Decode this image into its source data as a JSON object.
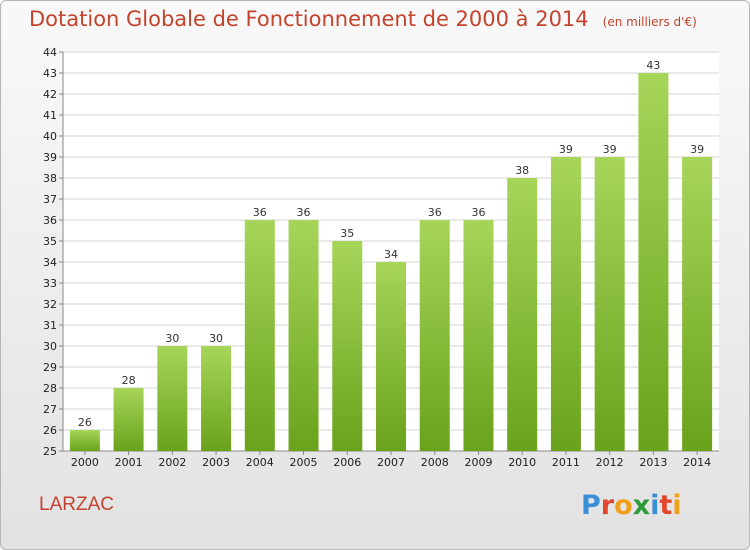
{
  "header": {
    "title": "Dotation Globale de Fonctionnement de 2000 à 2014",
    "subtitle": "(en milliers d'€)"
  },
  "footer": {
    "commune": "LARZAC",
    "logo_letters": [
      "P",
      "r",
      "o",
      "x",
      "i",
      "t",
      "i"
    ],
    "logo_colors": [
      "#3b8fd6",
      "#e2462d",
      "#f0a019",
      "#2e9a3c",
      "#3b8fd6",
      "#e2462d",
      "#f0a019"
    ]
  },
  "colors": {
    "bar_top": "#a6d55a",
    "bar_bottom": "#6aa21c",
    "grid": "#d6d6d6"
  },
  "chart_data": {
    "type": "bar",
    "title": "Dotation Globale de Fonctionnement de 2000 à 2014",
    "subtitle": "(en milliers d'€)",
    "categories": [
      "2000",
      "2001",
      "2002",
      "2003",
      "2004",
      "2005",
      "2006",
      "2007",
      "2008",
      "2009",
      "2010",
      "2011",
      "2012",
      "2013",
      "2014"
    ],
    "values": [
      26,
      28,
      30,
      30,
      36,
      36,
      35,
      34,
      36,
      36,
      38,
      39,
      39,
      43,
      39
    ],
    "ylim": [
      25,
      44
    ],
    "yticks": [
      25,
      26,
      27,
      28,
      29,
      30,
      31,
      32,
      33,
      34,
      35,
      36,
      37,
      38,
      39,
      40,
      41,
      42,
      43,
      44
    ],
    "grid": true,
    "legend": "none"
  }
}
